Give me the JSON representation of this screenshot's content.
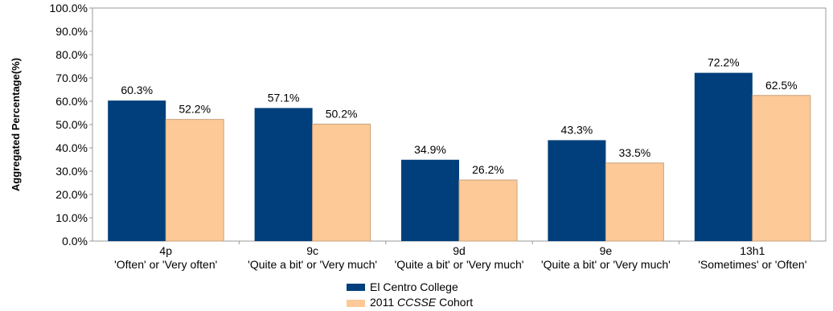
{
  "chart_data": {
    "type": "bar",
    "ylabel": "Aggregated Percentage(%)",
    "ylim": [
      0,
      100
    ],
    "yticks": [
      "0.0%",
      "10.0%",
      "20.0%",
      "30.0%",
      "40.0%",
      "50.0%",
      "60.0%",
      "70.0%",
      "80.0%",
      "90.0%",
      "100.0%"
    ],
    "categories": [
      {
        "code": "4p",
        "desc": "'Often' or 'Very often'"
      },
      {
        "code": "9c",
        "desc": "'Quite a bit' or 'Very much'"
      },
      {
        "code": "9d",
        "desc": "'Quite a bit' or 'Very much'"
      },
      {
        "code": "9e",
        "desc": "'Quite a bit' or 'Very much'"
      },
      {
        "code": "13h1",
        "desc": "'Sometimes' or 'Often'"
      }
    ],
    "series": [
      {
        "name": "El Centro College",
        "color": "#003f7b",
        "values": [
          60.3,
          57.1,
          34.9,
          43.3,
          72.2
        ],
        "labels": [
          "60.3%",
          "57.1%",
          "34.9%",
          "43.3%",
          "72.2%"
        ]
      },
      {
        "name_prefix": "2011 ",
        "name_italic": "CCSSE",
        "name_suffix": " Cohort",
        "color": "#fdc997",
        "values": [
          52.2,
          50.2,
          26.2,
          33.5,
          62.5
        ],
        "labels": [
          "52.2%",
          "50.2%",
          "26.2%",
          "33.5%",
          "62.5%"
        ]
      }
    ],
    "grid": false,
    "legend": "bottom"
  }
}
